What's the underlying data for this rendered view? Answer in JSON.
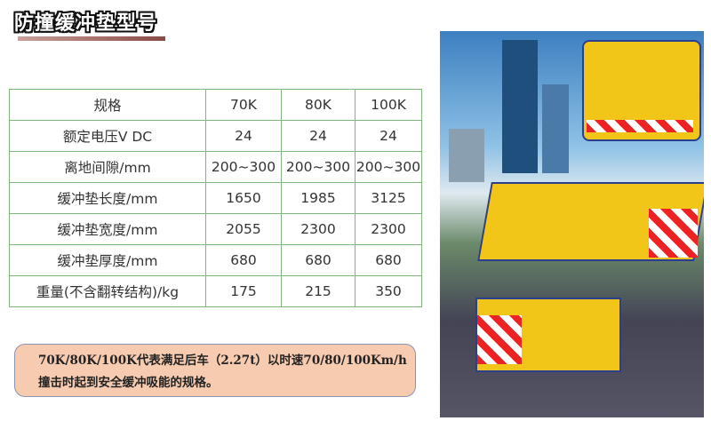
{
  "title": "防撞缓冲垫型号",
  "table": {
    "header": [
      "规格",
      "70K",
      "80K",
      "100K"
    ],
    "rows": [
      [
        "额定电压V DC",
        "24",
        "24",
        "24"
      ],
      [
        "离地间隙/mm",
        "200~300",
        "200~300",
        "200~300"
      ],
      [
        "缓冲垫长度/mm",
        "1650",
        "1985",
        "3125"
      ],
      [
        "缓冲垫宽度/mm",
        "2055",
        "2300",
        "2300"
      ],
      [
        "缓冲垫厚度/mm",
        "680",
        "680",
        "680"
      ],
      [
        "重量(不含翻转结构)/kg",
        "175",
        "215",
        "350"
      ]
    ]
  },
  "note": {
    "line1": "70K/80K/100K代表满足后车（2.27t）以时速70/80/100Km/h",
    "line2": "撞击时起到安全缓冲吸能的规格。"
  },
  "colors": {
    "table_border": "#7fb87a",
    "note_bg": "#f7cbb0",
    "pad_yellow": "#f2c618"
  }
}
